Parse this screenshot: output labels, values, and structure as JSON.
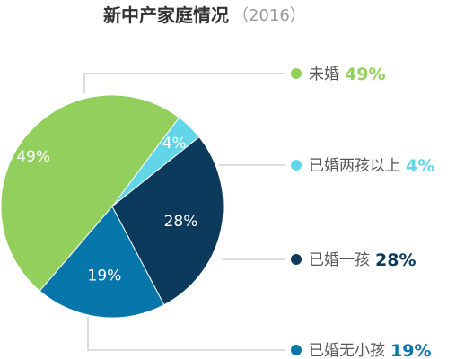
{
  "chart_data": {
    "type": "pie",
    "title": "新中产家庭情况",
    "subtitle": "（2016）",
    "categories": [
      "未婚",
      "已婚两孩以上",
      "已婚一孩",
      "已婚无小孩"
    ],
    "values": [
      49,
      4,
      28,
      19
    ],
    "value_labels": [
      "49%",
      "4%",
      "28%",
      "19%"
    ],
    "colors": [
      "#92cf5c",
      "#63d5e9",
      "#0b3a5c",
      "#0776ab"
    ],
    "legend_placement": "right"
  }
}
